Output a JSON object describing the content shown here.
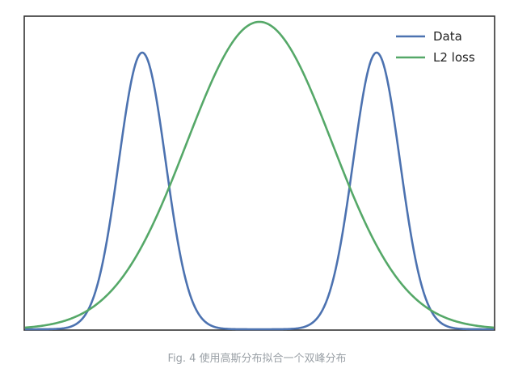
{
  "caption": "Fig. 4 使用高斯分布拟合一个双峰分布",
  "chart_data": {
    "type": "line",
    "title": "",
    "xlabel": "",
    "ylabel": "",
    "xlim": [
      -5,
      5
    ],
    "ylim": [
      0,
      1.0
    ],
    "grid": false,
    "ticks": false,
    "legend_position": "top-right",
    "series": [
      {
        "name": "Data",
        "color": "#4c72b0",
        "kind": "mixture-of-gaussians",
        "components": [
          {
            "mean": -2.5,
            "std": 0.5,
            "peak": 0.9
          },
          {
            "mean": 2.5,
            "std": 0.5,
            "peak": 0.9
          }
        ]
      },
      {
        "name": "L2 loss",
        "color": "#55a868",
        "kind": "gaussian",
        "components": [
          {
            "mean": 0.0,
            "std": 1.55,
            "peak": 1.0
          }
        ]
      }
    ]
  }
}
